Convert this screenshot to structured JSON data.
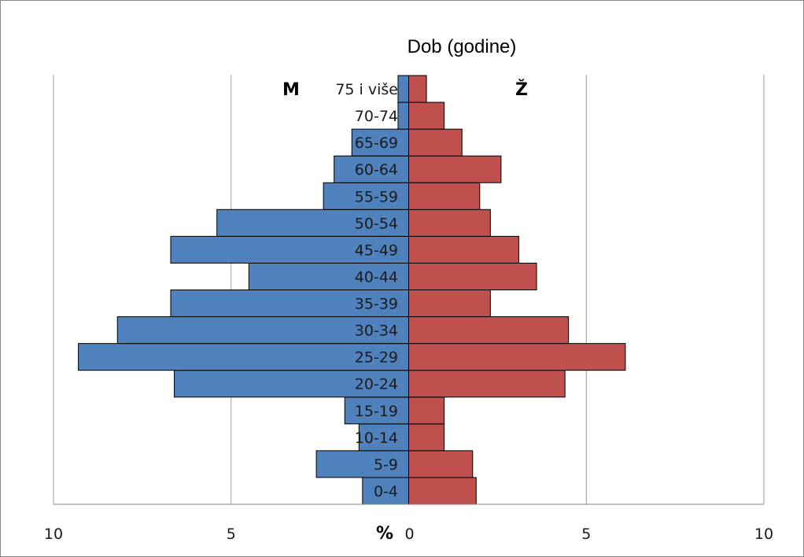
{
  "chart_data": {
    "type": "bar",
    "orientation": "horizontal",
    "title": "Dob (godine)",
    "xlabel": "%",
    "ylabel": "",
    "left_label": "M",
    "right_label": "Ž",
    "xlim": [
      -10,
      10
    ],
    "xticks": [
      -10,
      -5,
      0,
      5,
      10
    ],
    "xtick_labels": [
      "10",
      "5",
      "0",
      "5",
      "10"
    ],
    "grid": "vertical",
    "categories": [
      "0-4",
      "5-9",
      "10-14",
      "15-19",
      "20-24",
      "25-29",
      "30-34",
      "35-39",
      "40-44",
      "45-49",
      "50-54",
      "55-59",
      "60-64",
      "65-69",
      "70-74",
      "75 i više"
    ],
    "series": [
      {
        "name": "M",
        "color": "#4f81bd",
        "values": [
          1.3,
          2.6,
          1.4,
          1.8,
          6.6,
          9.3,
          8.2,
          6.7,
          4.5,
          6.7,
          5.4,
          2.4,
          2.1,
          1.6,
          0.3,
          0.3
        ]
      },
      {
        "name": "Ž",
        "color": "#c0504d",
        "values": [
          1.9,
          1.8,
          1.0,
          1.0,
          4.4,
          6.1,
          4.5,
          2.3,
          3.6,
          3.1,
          2.3,
          2.0,
          2.6,
          1.5,
          1.0,
          0.5
        ]
      }
    ]
  }
}
